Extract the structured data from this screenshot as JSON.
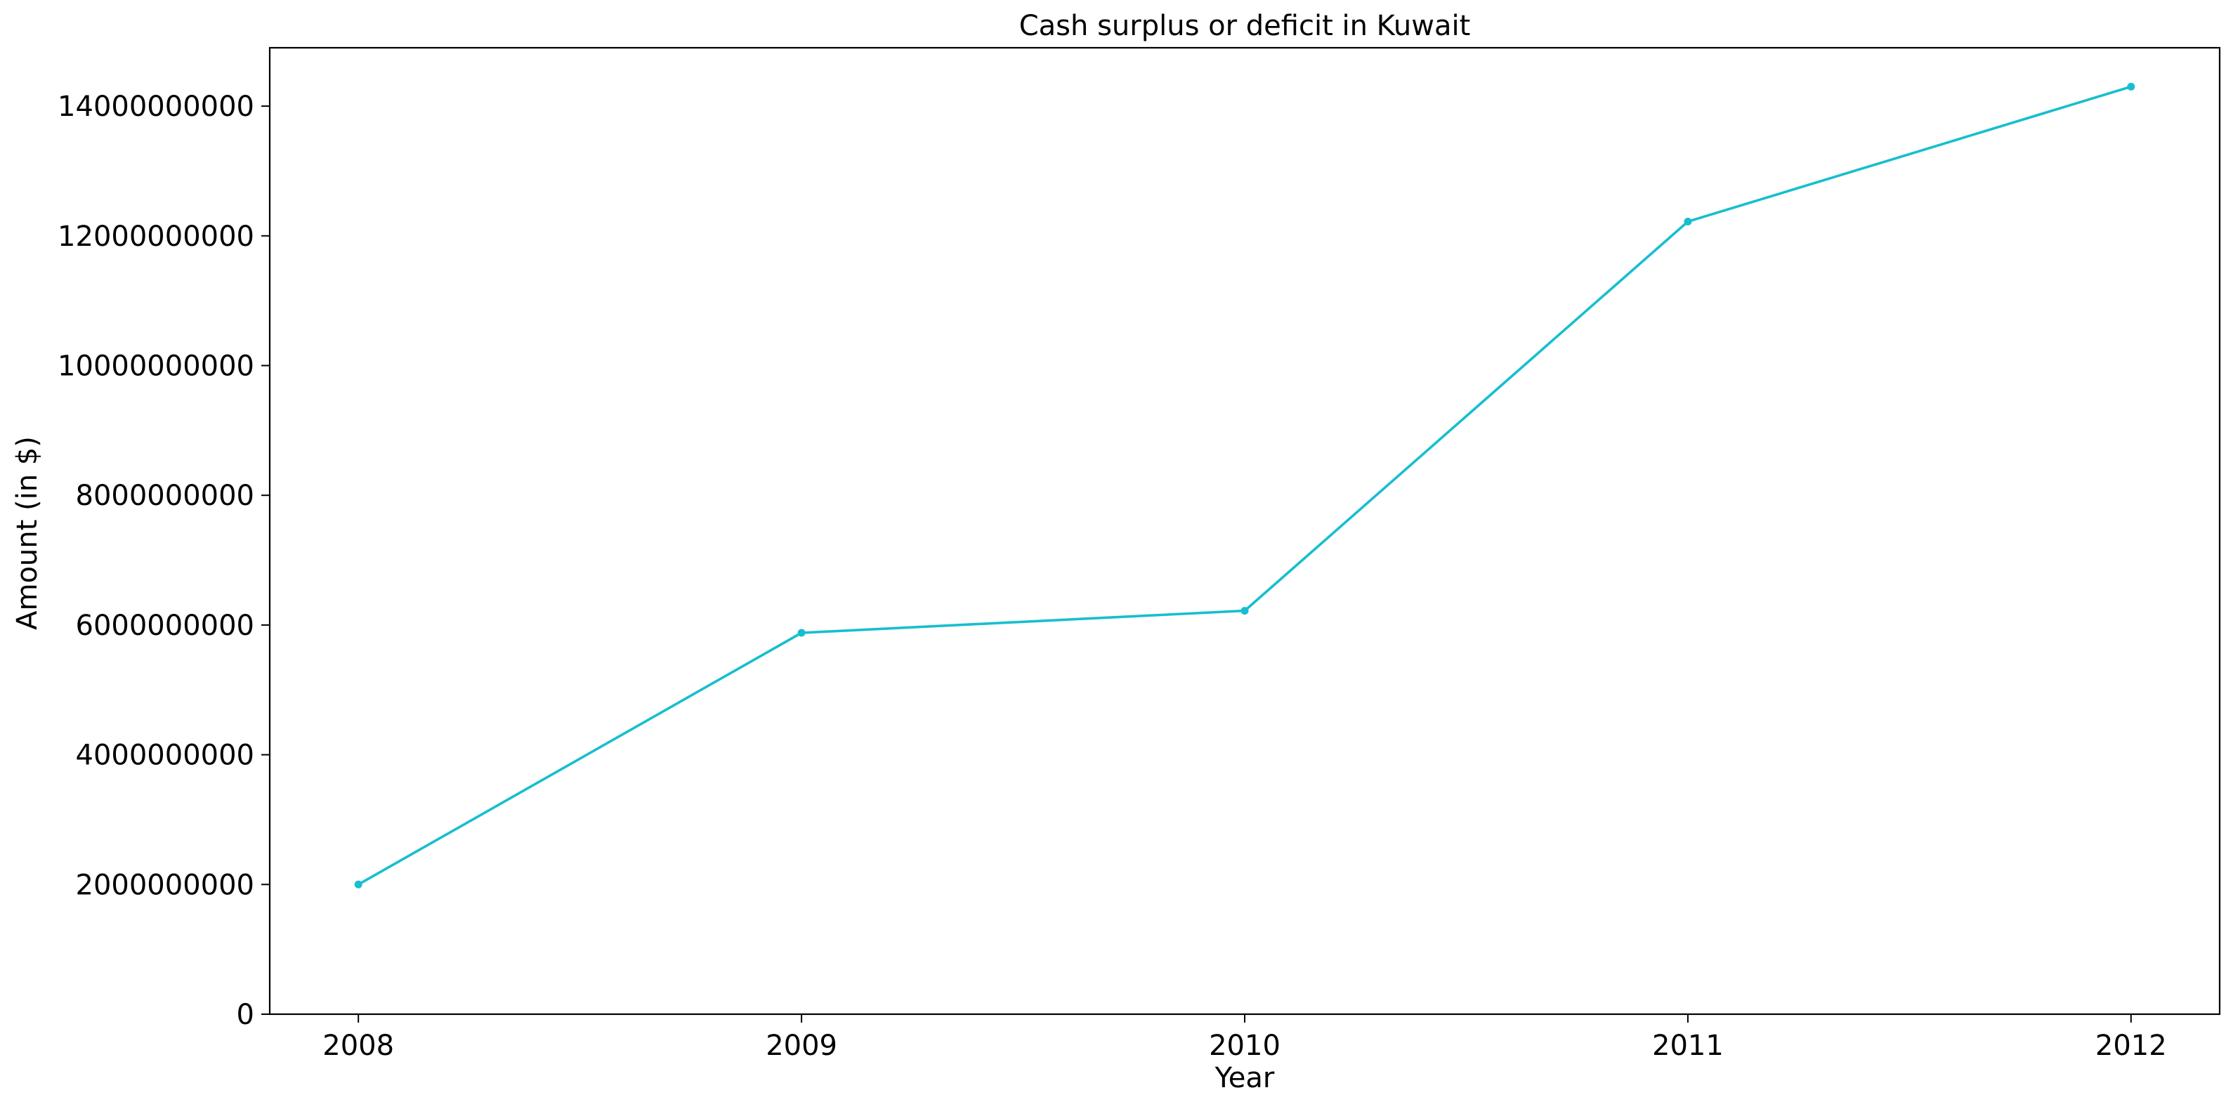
{
  "chart_data": {
    "type": "line",
    "title": "Cash surplus or deficit in Kuwait",
    "xlabel": "Year",
    "ylabel": "Amount (in $)",
    "categories": [
      "2008",
      "2009",
      "2010",
      "2011",
      "2012"
    ],
    "series": [
      {
        "values": [
          2000000000,
          5880000000,
          6220000000,
          12220000000,
          14300000000
        ],
        "color": "#17becf"
      }
    ],
    "ylim": [
      0,
      14900000000
    ],
    "yticks": [
      0,
      2000000000,
      4000000000,
      6000000000,
      8000000000,
      10000000000,
      12000000000,
      14000000000
    ],
    "ytick_labels": [
      "0",
      "2000000000",
      "4000000000",
      "6000000000",
      "8000000000",
      "10000000000",
      "12000000000",
      "14000000000"
    ],
    "grid": false,
    "marker": "dot",
    "legend": "none"
  }
}
